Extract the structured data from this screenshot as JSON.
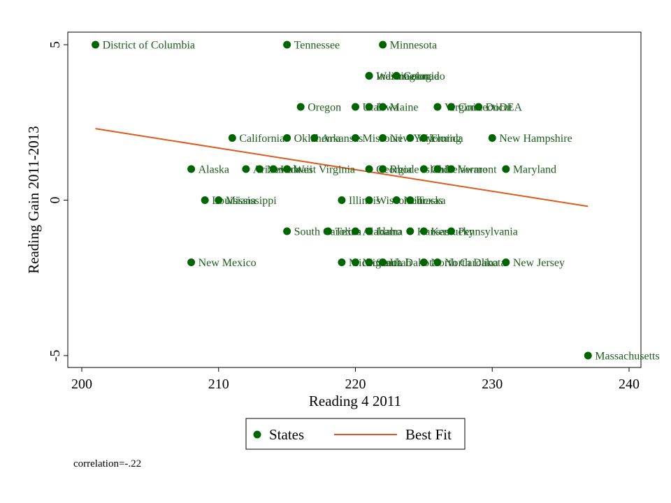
{
  "chart_data": {
    "type": "scatter",
    "xlabel": "Reading 4 2011",
    "ylabel": "Reading Gain 2011-2013",
    "xlim": [
      200,
      240
    ],
    "ylim": [
      -5,
      5
    ],
    "xticks": [
      200,
      210,
      220,
      230,
      240
    ],
    "yticks": [
      -5,
      0,
      5
    ],
    "grid": false,
    "legend": {
      "position": "bottom",
      "entries": [
        "States",
        "Best Fit"
      ]
    },
    "annotation": "correlation=-.22",
    "colors": {
      "points": "#006400",
      "labels": "#1a5e1a",
      "fit_line": "#e05a1e"
    },
    "series": [
      {
        "name": "States",
        "points": [
          {
            "label": "District of Columbia",
            "x": 201,
            "y": 5
          },
          {
            "label": "Tennessee",
            "x": 215,
            "y": 5
          },
          {
            "label": "Minnesota",
            "x": 222,
            "y": 5
          },
          {
            "label": "Indiana",
            "x": 221,
            "y": 4
          },
          {
            "label": "Washington",
            "x": 221,
            "y": 4
          },
          {
            "label": "Colorado",
            "x": 223,
            "y": 4
          },
          {
            "label": "Georgia",
            "x": 223,
            "y": 4
          },
          {
            "label": "Oregon",
            "x": 216,
            "y": 3
          },
          {
            "label": "Utah",
            "x": 220,
            "y": 3
          },
          {
            "label": "Iowa",
            "x": 221,
            "y": 3
          },
          {
            "label": "Maine",
            "x": 222,
            "y": 3
          },
          {
            "label": "Virginia",
            "x": 226,
            "y": 3
          },
          {
            "label": "Connecticut",
            "x": 227,
            "y": 3
          },
          {
            "label": "DoDEA",
            "x": 229,
            "y": 3
          },
          {
            "label": "California",
            "x": 211,
            "y": 2
          },
          {
            "label": "Oklahoma",
            "x": 215,
            "y": 2
          },
          {
            "label": "Arkansas",
            "x": 217,
            "y": 2
          },
          {
            "label": "Missouri",
            "x": 220,
            "y": 2
          },
          {
            "label": "New York",
            "x": 222,
            "y": 2
          },
          {
            "label": "Wyoming",
            "x": 224,
            "y": 2
          },
          {
            "label": "Florida",
            "x": 225,
            "y": 2
          },
          {
            "label": "New Hampshire",
            "x": 230,
            "y": 2
          },
          {
            "label": "Alaska",
            "x": 208,
            "y": 1
          },
          {
            "label": "Arizona",
            "x": 212,
            "y": 1
          },
          {
            "label": "Nevada",
            "x": 213,
            "y": 1
          },
          {
            "label": "Hawaii",
            "x": 214,
            "y": 1
          },
          {
            "label": "West Virginia",
            "x": 215,
            "y": 1
          },
          {
            "label": "Georgia",
            "x": 221,
            "y": 1
          },
          {
            "label": "Rhode Island",
            "x": 222,
            "y": 1
          },
          {
            "label": "Ohio",
            "x": 225,
            "y": 1
          },
          {
            "label": "Delaware",
            "x": 226,
            "y": 1
          },
          {
            "label": "Vermont",
            "x": 227,
            "y": 1
          },
          {
            "label": "Maryland",
            "x": 231,
            "y": 1
          },
          {
            "label": "Louisiana",
            "x": 209,
            "y": 0
          },
          {
            "label": "Mississippi",
            "x": 210,
            "y": 0
          },
          {
            "label": "Illinois",
            "x": 219,
            "y": 0
          },
          {
            "label": "Wisconsin",
            "x": 221,
            "y": 0
          },
          {
            "label": "Nebraska",
            "x": 223,
            "y": 0
          },
          {
            "label": "Texas",
            "x": 224,
            "y": 0
          },
          {
            "label": "South Carolina",
            "x": 215,
            "y": -1
          },
          {
            "label": "Texas",
            "x": 218,
            "y": -1
          },
          {
            "label": "Alabama",
            "x": 220,
            "y": -1
          },
          {
            "label": "Idaho",
            "x": 221,
            "y": -1
          },
          {
            "label": "Kansas",
            "x": 224,
            "y": -1
          },
          {
            "label": "Kentucky",
            "x": 225,
            "y": -1
          },
          {
            "label": "Pennsylvania",
            "x": 227,
            "y": -1
          },
          {
            "label": "New Mexico",
            "x": 208,
            "y": -2
          },
          {
            "label": "Michigan",
            "x": 219,
            "y": -2
          },
          {
            "label": "Montana",
            "x": 220,
            "y": -2
          },
          {
            "label": "South Dakota",
            "x": 221,
            "y": -2
          },
          {
            "label": "Utah",
            "x": 222,
            "y": -2
          },
          {
            "label": "North Carolina",
            "x": 225,
            "y": -2
          },
          {
            "label": "North Dakota",
            "x": 226,
            "y": -2
          },
          {
            "label": "New Jersey",
            "x": 231,
            "y": -2
          },
          {
            "label": "Massachusetts",
            "x": 237,
            "y": -5
          }
        ]
      },
      {
        "name": "Best Fit",
        "type": "line",
        "x": [
          201,
          237
        ],
        "y": [
          2.3,
          -0.2
        ]
      }
    ]
  }
}
